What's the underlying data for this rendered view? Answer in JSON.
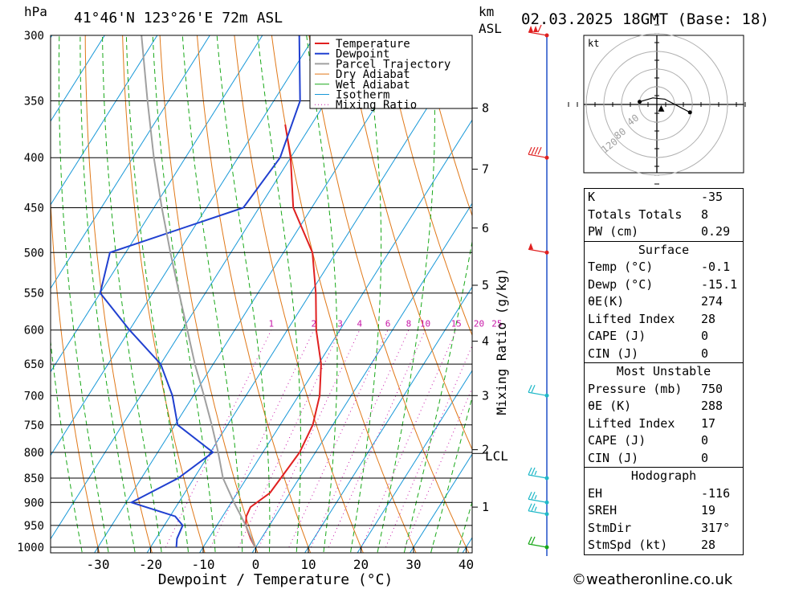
{
  "header": {
    "pressure_unit": "hPa",
    "location": "41°46'N  123°26'E  72m  ASL",
    "height_unit": "km",
    "height_unit2": "ASL",
    "datetime": "02.03.2025  18GMT  (Base: 18)"
  },
  "chart_data": {
    "type": "skew-t",
    "xlabel": "Dewpoint / Temperature (°C)",
    "right_axis_label": "Mixing Ratio (g/kg)",
    "x_ticks": [
      -30,
      -20,
      -10,
      0,
      10,
      20,
      30,
      40
    ],
    "xlim": [
      -40,
      40
    ],
    "pressure_levels": [
      300,
      350,
      400,
      450,
      500,
      550,
      600,
      650,
      700,
      750,
      800,
      850,
      900,
      950,
      1000
    ],
    "ylim": [
      1000,
      300
    ],
    "height_km_ticks": [
      {
        "km": "1",
        "p": 910
      },
      {
        "km": "2",
        "p": 795
      },
      {
        "km": "3",
        "p": 700
      },
      {
        "km": "4",
        "p": 616
      },
      {
        "km": "5",
        "p": 540
      },
      {
        "km": "6",
        "p": 472
      },
      {
        "km": "7",
        "p": 411
      },
      {
        "km": "8",
        "p": 356
      }
    ],
    "lcl": {
      "label": "LCL",
      "p": 802
    },
    "mixing_ratio_labels": [
      "1",
      "2",
      "3",
      "4",
      "6",
      "8",
      "10",
      "15",
      "20",
      "25"
    ],
    "legend": [
      "Temperature",
      "Dewpoint",
      "Parcel Trajectory",
      "Dry Adiabat",
      "Wet Adiabat",
      "Isotherm",
      "Mixing Ratio"
    ],
    "colors": {
      "temperature": "#e02020",
      "dewpoint": "#2040d0",
      "parcel": "#a0a0a0",
      "dry_adiabat": "#e07818",
      "wet_adiabat": "#18a818",
      "isotherm": "#1898d8",
      "mixing_ratio": "#c818a8"
    },
    "series": [
      {
        "name": "Temperature",
        "points": [
          [
            1000,
            -0.1
          ],
          [
            980,
            -2
          ],
          [
            950,
            -4.5
          ],
          [
            930,
            -5.5
          ],
          [
            910,
            -5.8
          ],
          [
            880,
            -3.8
          ],
          [
            850,
            -3.5
          ],
          [
            800,
            -3
          ],
          [
            750,
            -3.8
          ],
          [
            700,
            -6
          ],
          [
            650,
            -9.5
          ],
          [
            600,
            -14.5
          ],
          [
            550,
            -19
          ],
          [
            500,
            -24.5
          ],
          [
            450,
            -33.5
          ],
          [
            400,
            -40
          ],
          [
            370,
            -45
          ]
        ]
      },
      {
        "name": "Dewpoint",
        "points": [
          [
            1000,
            -15.1
          ],
          [
            980,
            -16
          ],
          [
            950,
            -16.5
          ],
          [
            930,
            -19
          ],
          [
            900,
            -29
          ],
          [
            850,
            -23
          ],
          [
            800,
            -19.5
          ],
          [
            750,
            -29.5
          ],
          [
            700,
            -34
          ],
          [
            650,
            -40
          ],
          [
            600,
            -50
          ],
          [
            550,
            -60
          ],
          [
            500,
            -63
          ],
          [
            450,
            -43
          ],
          [
            400,
            -42
          ],
          [
            350,
            -45
          ],
          [
            300,
            -53
          ]
        ]
      },
      {
        "name": "Parcel Trajectory",
        "points": [
          [
            1000,
            -0.1
          ],
          [
            950,
            -4.5
          ],
          [
            900,
            -9.5
          ],
          [
            850,
            -14.5
          ],
          [
            800,
            -18.5
          ],
          [
            750,
            -23
          ],
          [
            700,
            -28
          ],
          [
            650,
            -33.5
          ],
          [
            600,
            -39
          ],
          [
            550,
            -45
          ],
          [
            500,
            -51.5
          ],
          [
            450,
            -58.5
          ],
          [
            400,
            -66
          ],
          [
            350,
            -74
          ],
          [
            300,
            -83
          ]
        ]
      }
    ],
    "wind_barbs": [
      {
        "p": 300,
        "color": "#e02020",
        "flags": 2,
        "full": 1,
        "half": 0
      },
      {
        "p": 400,
        "color": "#e02020",
        "flags": 0,
        "full": 4,
        "half": 0
      },
      {
        "p": 500,
        "color": "#e02020",
        "flags": 1,
        "full": 0,
        "half": 0
      },
      {
        "p": 700,
        "color": "#20b8c8",
        "flags": 0,
        "full": 2,
        "half": 0
      },
      {
        "p": 850,
        "color": "#20b8c8",
        "flags": 0,
        "full": 2,
        "half": 1
      },
      {
        "p": 900,
        "color": "#20b8c8",
        "flags": 0,
        "full": 2,
        "half": 1
      },
      {
        "p": 925,
        "color": "#20b8c8",
        "flags": 0,
        "full": 2,
        "half": 1
      },
      {
        "p": 1000,
        "color": "#18a818",
        "flags": 0,
        "full": 2,
        "half": 0
      }
    ],
    "hodograph": {
      "unit": "kt",
      "ring_labels": [
        "40",
        "80",
        "120"
      ],
      "trace": [
        [
          -13,
          2
        ],
        [
          -3,
          5
        ],
        [
          6,
          4
        ],
        [
          25,
          -6
        ]
      ],
      "storm_motion": [
        -4,
        2.5
      ]
    }
  },
  "indices": [
    {
      "label": "K",
      "value": "-35"
    },
    {
      "label": "Totals Totals",
      "value": "8"
    },
    {
      "label": "PW (cm)",
      "value": "0.29"
    }
  ],
  "surface": {
    "title": "Surface",
    "rows": [
      {
        "label": "Temp (°C)",
        "value": "-0.1"
      },
      {
        "label": "Dewp (°C)",
        "value": "-15.1"
      },
      {
        "label": "θE(K)",
        "value": "274"
      },
      {
        "label": "Lifted Index",
        "value": "28"
      },
      {
        "label": "CAPE (J)",
        "value": "0"
      },
      {
        "label": "CIN (J)",
        "value": "0"
      }
    ]
  },
  "most_unstable": {
    "title": "Most Unstable",
    "rows": [
      {
        "label": "Pressure (mb)",
        "value": "750"
      },
      {
        "label": "θE (K)",
        "value": "288"
      },
      {
        "label": "Lifted Index",
        "value": "17"
      },
      {
        "label": "CAPE (J)",
        "value": "0"
      },
      {
        "label": "CIN (J)",
        "value": "0"
      }
    ]
  },
  "hodograph_box": {
    "title": "Hodograph",
    "rows": [
      {
        "label": "EH",
        "value": "-116"
      },
      {
        "label": "SREH",
        "value": "19"
      },
      {
        "label": "StmDir",
        "value": "317°"
      },
      {
        "label": "StmSpd (kt)",
        "value": "28"
      }
    ]
  },
  "credit": "©weatheronline.co.uk"
}
